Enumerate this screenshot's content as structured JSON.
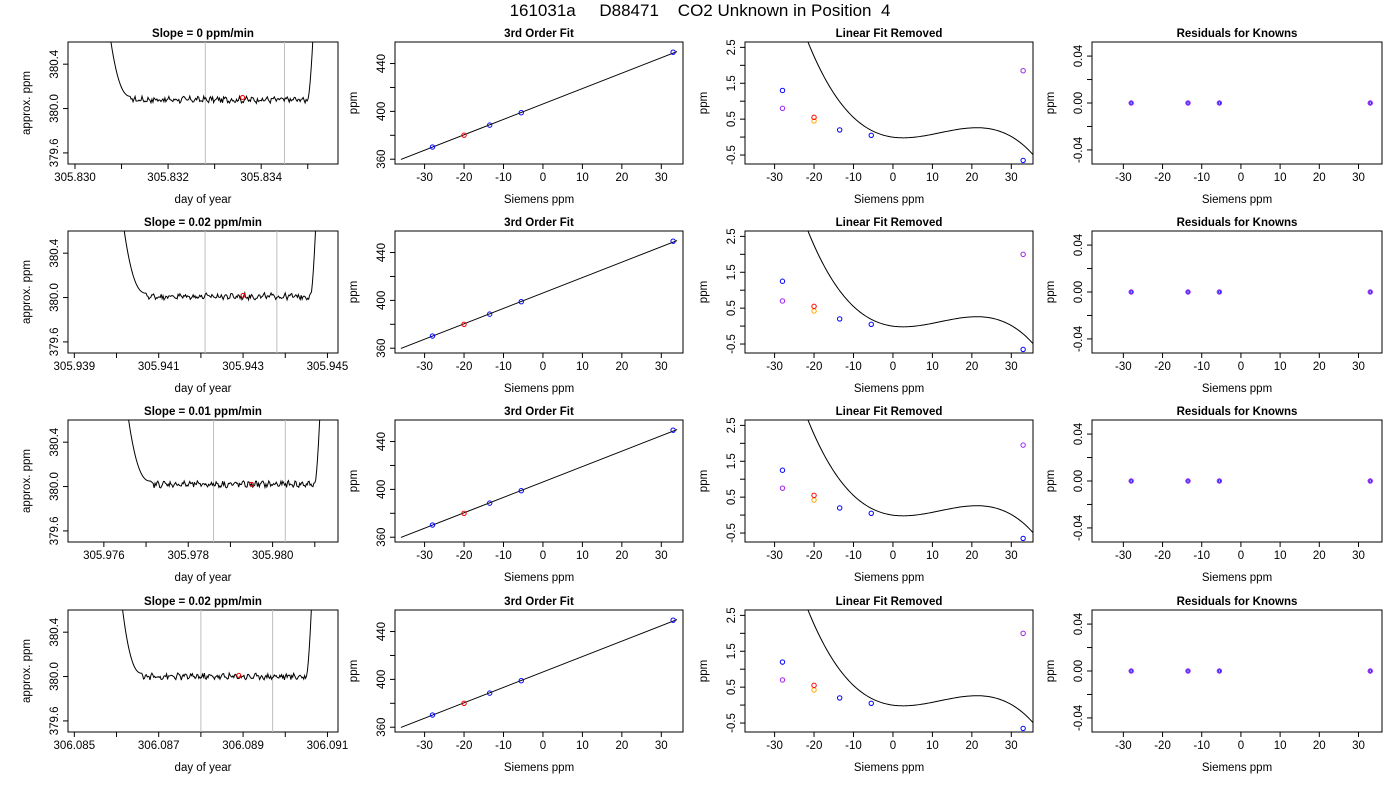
{
  "figure": {
    "title": "161031a     D88471    CO2 Unknown in Position  4"
  },
  "colors": {
    "axis": "#000000",
    "trace": "#000000",
    "gridline": "#bebebe",
    "known_point": "#0000ff",
    "unknown_point": "#ff0000",
    "residual_marker": "#a020f0",
    "alt_point": "#ffa500"
  },
  "chart_data": [
    {
      "type": "line",
      "panel": "trace",
      "row": 0,
      "title": "Slope =  0  ppm/min",
      "xlabel": "day of year",
      "ylabel": "approx. ppm",
      "xlim": [
        305.82985,
        305.83565
      ],
      "ylim": [
        379.5,
        380.6
      ],
      "xticks": [
        305.83,
        305.832,
        305.834
      ],
      "xtick_labels": [
        "305.830",
        "305.832",
        "305.834"
      ],
      "xminor": [
        305.831,
        305.833,
        305.835
      ],
      "yticks": [
        379.6,
        380.0,
        380.4
      ],
      "ytick_labels": [
        "379.6",
        "380.0",
        "380.4"
      ],
      "vlines": [
        305.8328,
        305.8345
      ],
      "marker": {
        "x": 305.8336,
        "y": 380.1
      },
      "flat_start": 305.8312,
      "flat_end": 305.835,
      "level": 380.08,
      "rise_start": 305.8305,
      "rise_end": 305.8352
    },
    {
      "type": "scatter",
      "panel": "fit",
      "row": 0,
      "title": "3rd Order Fit",
      "xlabel": "Siemens ppm",
      "ylabel": "ppm",
      "xlim": [
        -37.5,
        35.5
      ],
      "ylim": [
        356,
        458
      ],
      "xticks": [
        -30,
        -20,
        -10,
        0,
        10,
        20,
        30
      ],
      "yticks": [
        360,
        400,
        440
      ],
      "yminor": [
        380,
        420
      ],
      "line": {
        "x": [
          -36,
          34
        ],
        "y": [
          359.8,
          450.0
        ]
      },
      "points": [
        {
          "x": -28,
          "y": 370.2,
          "role": "known"
        },
        {
          "x": -20,
          "y": 380.1,
          "role": "unknown"
        },
        {
          "x": -13.5,
          "y": 388.5,
          "role": "known"
        },
        {
          "x": -5.5,
          "y": 398.9,
          "role": "known"
        },
        {
          "x": 33,
          "y": 449.5,
          "role": "known"
        }
      ]
    },
    {
      "type": "scatter",
      "panel": "linear_removed",
      "row": 0,
      "title": "Linear Fit Removed",
      "xlabel": "Siemens ppm",
      "ylabel": "ppm",
      "xlim": [
        -37.5,
        35.5
      ],
      "ylim": [
        -0.75,
        2.65
      ],
      "xticks": [
        -30,
        -20,
        -10,
        0,
        10,
        20,
        30
      ],
      "yticks": [
        -0.5,
        0.5,
        1.5,
        2.5
      ],
      "yminor": [
        0,
        1,
        2
      ],
      "ytick_labels": [
        "-0.5",
        "0.5",
        "1.5",
        "2.5"
      ],
      "curve": {
        "c0": -0.0017,
        "c1": -0.0148,
        "c2": 0.00314,
        "c3": -8.76e-05
      },
      "points": [
        {
          "x": -28,
          "y": 1.3,
          "role": "known"
        },
        {
          "x": -28,
          "y": 0.8,
          "role": "residual"
        },
        {
          "x": -20,
          "y": 0.45,
          "role": "alt"
        },
        {
          "x": -20,
          "y": 0.55,
          "role": "unknown"
        },
        {
          "x": -13.5,
          "y": 0.2,
          "role": "known"
        },
        {
          "x": -5.5,
          "y": 0.05,
          "role": "known"
        },
        {
          "x": 33,
          "y": -0.65,
          "role": "known"
        },
        {
          "x": 33,
          "y": 1.85,
          "role": "residual"
        }
      ]
    },
    {
      "type": "scatter",
      "panel": "residuals",
      "row": 0,
      "title": "Residuals for Knowns",
      "xlabel": "Siemens ppm",
      "ylabel": "ppm",
      "xlim": [
        -38,
        36
      ],
      "ylim": [
        -0.052,
        0.052
      ],
      "xticks": [
        -30,
        -20,
        -10,
        0,
        10,
        20,
        30
      ],
      "yticks": [
        -0.04,
        0.0,
        0.04
      ],
      "yminor": [
        -0.02,
        0.02
      ],
      "ytick_labels": [
        "-0.04",
        "0.00",
        "0.04"
      ],
      "points": [
        {
          "x": -28,
          "y": 0
        },
        {
          "x": -13.5,
          "y": 0
        },
        {
          "x": -5.5,
          "y": 0
        },
        {
          "x": 33,
          "y": 0
        }
      ]
    },
    {
      "type": "line",
      "panel": "trace",
      "row": 1,
      "title": "Slope =  0.02  ppm/min",
      "xlabel": "day of year",
      "ylabel": "approx. ppm",
      "xlim": [
        305.93885,
        305.94525
      ],
      "ylim": [
        379.5,
        380.6
      ],
      "xticks": [
        305.939,
        305.941,
        305.943,
        305.945
      ],
      "xtick_labels": [
        "305.939",
        "305.941",
        "305.943",
        "305.945"
      ],
      "xminor": [
        305.94,
        305.942,
        305.944
      ],
      "yticks": [
        379.6,
        380.0,
        380.4
      ],
      "ytick_labels": [
        "379.6",
        "380.0",
        "380.4"
      ],
      "vlines": [
        305.9421,
        305.9438
      ],
      "marker": {
        "x": 305.943,
        "y": 380.02
      },
      "flat_start": 305.9407,
      "flat_end": 305.9446,
      "level": 380.01,
      "rise_start": 305.9399,
      "rise_end": 305.9448
    },
    {
      "type": "scatter",
      "panel": "fit",
      "row": 1,
      "title": "3rd Order Fit",
      "xlabel": "Siemens ppm",
      "ylabel": "ppm",
      "xlim": [
        -37.5,
        35.5
      ],
      "ylim": [
        356,
        458
      ],
      "xticks": [
        -30,
        -20,
        -10,
        0,
        10,
        20,
        30
      ],
      "yticks": [
        360,
        400,
        440
      ],
      "yminor": [
        380,
        420
      ],
      "line": {
        "x": [
          -36,
          34
        ],
        "y": [
          359.8,
          450.0
        ]
      },
      "points": [
        {
          "x": -28,
          "y": 370.2,
          "role": "known"
        },
        {
          "x": -20,
          "y": 380.0,
          "role": "unknown"
        },
        {
          "x": -13.5,
          "y": 388.5,
          "role": "known"
        },
        {
          "x": -5.5,
          "y": 398.9,
          "role": "known"
        },
        {
          "x": 33,
          "y": 449.5,
          "role": "known"
        }
      ]
    },
    {
      "type": "scatter",
      "panel": "linear_removed",
      "row": 1,
      "title": "Linear Fit Removed",
      "xlabel": "Siemens ppm",
      "ylabel": "ppm",
      "xlim": [
        -37.5,
        35.5
      ],
      "ylim": [
        -0.75,
        2.65
      ],
      "xticks": [
        -30,
        -20,
        -10,
        0,
        10,
        20,
        30
      ],
      "yticks": [
        -0.5,
        0.5,
        1.5,
        2.5
      ],
      "yminor": [
        0,
        1,
        2
      ],
      "ytick_labels": [
        "-0.5",
        "0.5",
        "1.5",
        "2.5"
      ],
      "curve": {
        "c0": -0.0017,
        "c1": -0.0148,
        "c2": 0.00314,
        "c3": -8.76e-05
      },
      "points": [
        {
          "x": -28,
          "y": 1.25,
          "role": "known"
        },
        {
          "x": -28,
          "y": 0.7,
          "role": "residual"
        },
        {
          "x": -20,
          "y": 0.42,
          "role": "alt"
        },
        {
          "x": -20,
          "y": 0.55,
          "role": "unknown"
        },
        {
          "x": -13.5,
          "y": 0.2,
          "role": "known"
        },
        {
          "x": -5.5,
          "y": 0.05,
          "role": "known"
        },
        {
          "x": 33,
          "y": -0.65,
          "role": "known"
        },
        {
          "x": 33,
          "y": 2.0,
          "role": "residual"
        }
      ]
    },
    {
      "type": "scatter",
      "panel": "residuals",
      "row": 1,
      "title": "Residuals for Knowns",
      "xlabel": "Siemens ppm",
      "ylabel": "ppm",
      "xlim": [
        -38,
        36
      ],
      "ylim": [
        -0.052,
        0.052
      ],
      "xticks": [
        -30,
        -20,
        -10,
        0,
        10,
        20,
        30
      ],
      "yticks": [
        -0.04,
        0.0,
        0.04
      ],
      "yminor": [
        -0.02,
        0.02
      ],
      "ytick_labels": [
        "-0.04",
        "0.00",
        "0.04"
      ],
      "points": [
        {
          "x": -28,
          "y": 0
        },
        {
          "x": -13.5,
          "y": 0
        },
        {
          "x": -5.5,
          "y": 0
        },
        {
          "x": 33,
          "y": 0
        }
      ]
    },
    {
      "type": "line",
      "panel": "trace",
      "row": 2,
      "title": "Slope =  0.01  ppm/min",
      "xlabel": "day of year",
      "ylabel": "approx. ppm",
      "xlim": [
        305.97515,
        305.98155
      ],
      "ylim": [
        379.5,
        380.6
      ],
      "xticks": [
        305.976,
        305.978,
        305.98
      ],
      "xtick_labels": [
        "305.976",
        "305.978",
        "305.980"
      ],
      "xminor": [
        305.977,
        305.979,
        305.981
      ],
      "yticks": [
        379.6,
        380.0,
        380.4
      ],
      "ytick_labels": [
        "379.6",
        "380.0",
        "380.4"
      ],
      "vlines": [
        305.9786,
        305.9803
      ],
      "marker": {
        "x": 305.9795,
        "y": 380.02
      },
      "flat_start": 305.9771,
      "flat_end": 305.981,
      "level": 380.02,
      "rise_start": 305.9763,
      "rise_end": 305.9812
    },
    {
      "type": "scatter",
      "panel": "fit",
      "row": 2,
      "title": "3rd Order Fit",
      "xlabel": "Siemens ppm",
      "ylabel": "ppm",
      "xlim": [
        -37.5,
        35.5
      ],
      "ylim": [
        356,
        458
      ],
      "xticks": [
        -30,
        -20,
        -10,
        0,
        10,
        20,
        30
      ],
      "yticks": [
        360,
        400,
        440
      ],
      "yminor": [
        380,
        420
      ],
      "line": {
        "x": [
          -36,
          34
        ],
        "y": [
          359.8,
          450.0
        ]
      },
      "points": [
        {
          "x": -28,
          "y": 370.2,
          "role": "known"
        },
        {
          "x": -20,
          "y": 380.0,
          "role": "unknown"
        },
        {
          "x": -13.5,
          "y": 388.5,
          "role": "known"
        },
        {
          "x": -5.5,
          "y": 398.9,
          "role": "known"
        },
        {
          "x": 33,
          "y": 449.5,
          "role": "known"
        }
      ]
    },
    {
      "type": "scatter",
      "panel": "linear_removed",
      "row": 2,
      "title": "Linear Fit Removed",
      "xlabel": "Siemens ppm",
      "ylabel": "ppm",
      "xlim": [
        -37.5,
        35.5
      ],
      "ylim": [
        -0.75,
        2.65
      ],
      "xticks": [
        -30,
        -20,
        -10,
        0,
        10,
        20,
        30
      ],
      "yticks": [
        -0.5,
        0.5,
        1.5,
        2.5
      ],
      "yminor": [
        0,
        1,
        2
      ],
      "ytick_labels": [
        "-0.5",
        "0.5",
        "1.5",
        "2.5"
      ],
      "curve": {
        "c0": -0.0017,
        "c1": -0.0148,
        "c2": 0.00314,
        "c3": -8.76e-05
      },
      "points": [
        {
          "x": -28,
          "y": 1.25,
          "role": "known"
        },
        {
          "x": -28,
          "y": 0.75,
          "role": "residual"
        },
        {
          "x": -20,
          "y": 0.42,
          "role": "alt"
        },
        {
          "x": -20,
          "y": 0.55,
          "role": "unknown"
        },
        {
          "x": -13.5,
          "y": 0.2,
          "role": "known"
        },
        {
          "x": -5.5,
          "y": 0.05,
          "role": "known"
        },
        {
          "x": 33,
          "y": -0.65,
          "role": "known"
        },
        {
          "x": 33,
          "y": 1.95,
          "role": "residual"
        }
      ]
    },
    {
      "type": "scatter",
      "panel": "residuals",
      "row": 2,
      "title": "Residuals for Knowns",
      "xlabel": "Siemens ppm",
      "ylabel": "ppm",
      "xlim": [
        -38,
        36
      ],
      "ylim": [
        -0.052,
        0.052
      ],
      "xticks": [
        -30,
        -20,
        -10,
        0,
        10,
        20,
        30
      ],
      "yticks": [
        -0.04,
        0.0,
        0.04
      ],
      "yminor": [
        -0.02,
        0.02
      ],
      "ytick_labels": [
        "-0.04",
        "0.00",
        "0.04"
      ],
      "points": [
        {
          "x": -28,
          "y": 0
        },
        {
          "x": -13.5,
          "y": 0
        },
        {
          "x": -5.5,
          "y": 0
        },
        {
          "x": 33,
          "y": 0
        }
      ]
    },
    {
      "type": "line",
      "panel": "trace",
      "row": 3,
      "title": "Slope =  0.02  ppm/min",
      "xlabel": "day of year",
      "ylabel": "approx. ppm",
      "xlim": [
        306.08485,
        306.09125
      ],
      "ylim": [
        379.5,
        380.6
      ],
      "xticks": [
        306.085,
        306.087,
        306.089,
        306.091
      ],
      "xtick_labels": [
        "306.085",
        "306.087",
        "306.089",
        "306.091"
      ],
      "xminor": [
        306.086,
        306.088,
        306.09
      ],
      "yticks": [
        379.6,
        380.0,
        380.4
      ],
      "ytick_labels": [
        "379.6",
        "380.0",
        "380.4"
      ],
      "vlines": [
        306.088,
        306.0897
      ],
      "marker": {
        "x": 306.0889,
        "y": 380.01
      },
      "flat_start": 306.0866,
      "flat_end": 306.0905,
      "level": 380.0,
      "rise_start": 306.0859,
      "rise_end": 306.0907
    },
    {
      "type": "scatter",
      "panel": "fit",
      "row": 3,
      "title": "3rd Order Fit",
      "xlabel": "Siemens ppm",
      "ylabel": "ppm",
      "xlim": [
        -37.5,
        35.5
      ],
      "ylim": [
        356,
        458
      ],
      "xticks": [
        -30,
        -20,
        -10,
        0,
        10,
        20,
        30
      ],
      "yticks": [
        360,
        400,
        440
      ],
      "yminor": [
        380,
        420
      ],
      "line": {
        "x": [
          -36,
          34
        ],
        "y": [
          359.8,
          450.0
        ]
      },
      "points": [
        {
          "x": -28,
          "y": 370.2,
          "role": "known"
        },
        {
          "x": -20,
          "y": 380.0,
          "role": "unknown"
        },
        {
          "x": -13.5,
          "y": 388.5,
          "role": "known"
        },
        {
          "x": -5.5,
          "y": 398.9,
          "role": "known"
        },
        {
          "x": 33,
          "y": 449.5,
          "role": "known"
        }
      ]
    },
    {
      "type": "scatter",
      "panel": "linear_removed",
      "row": 3,
      "title": "Linear Fit Removed",
      "xlabel": "Siemens ppm",
      "ylabel": "ppm",
      "xlim": [
        -37.5,
        35.5
      ],
      "ylim": [
        -0.75,
        2.65
      ],
      "xticks": [
        -30,
        -20,
        -10,
        0,
        10,
        20,
        30
      ],
      "yticks": [
        -0.5,
        0.5,
        1.5,
        2.5
      ],
      "yminor": [
        0,
        1,
        2
      ],
      "ytick_labels": [
        "-0.5",
        "0.5",
        "1.5",
        "2.5"
      ],
      "curve": {
        "c0": -0.0017,
        "c1": -0.0148,
        "c2": 0.00314,
        "c3": -8.76e-05
      },
      "points": [
        {
          "x": -28,
          "y": 1.2,
          "role": "known"
        },
        {
          "x": -28,
          "y": 0.7,
          "role": "residual"
        },
        {
          "x": -20,
          "y": 0.42,
          "role": "alt"
        },
        {
          "x": -20,
          "y": 0.55,
          "role": "unknown"
        },
        {
          "x": -13.5,
          "y": 0.2,
          "role": "known"
        },
        {
          "x": -5.5,
          "y": 0.05,
          "role": "known"
        },
        {
          "x": 33,
          "y": -0.65,
          "role": "known"
        },
        {
          "x": 33,
          "y": 2.0,
          "role": "residual"
        }
      ]
    },
    {
      "type": "scatter",
      "panel": "residuals",
      "row": 3,
      "title": "Residuals for Knowns",
      "xlabel": "Siemens ppm",
      "ylabel": "ppm",
      "xlim": [
        -38,
        36
      ],
      "ylim": [
        -0.052,
        0.052
      ],
      "xticks": [
        -30,
        -20,
        -10,
        0,
        10,
        20,
        30
      ],
      "yticks": [
        -0.04,
        0.0,
        0.04
      ],
      "yminor": [
        -0.02,
        0.02
      ],
      "ytick_labels": [
        "-0.04",
        "0.00",
        "0.04"
      ],
      "points": [
        {
          "x": -28,
          "y": 0
        },
        {
          "x": -13.5,
          "y": 0
        },
        {
          "x": -5.5,
          "y": 0
        },
        {
          "x": 33,
          "y": 0
        }
      ]
    }
  ]
}
